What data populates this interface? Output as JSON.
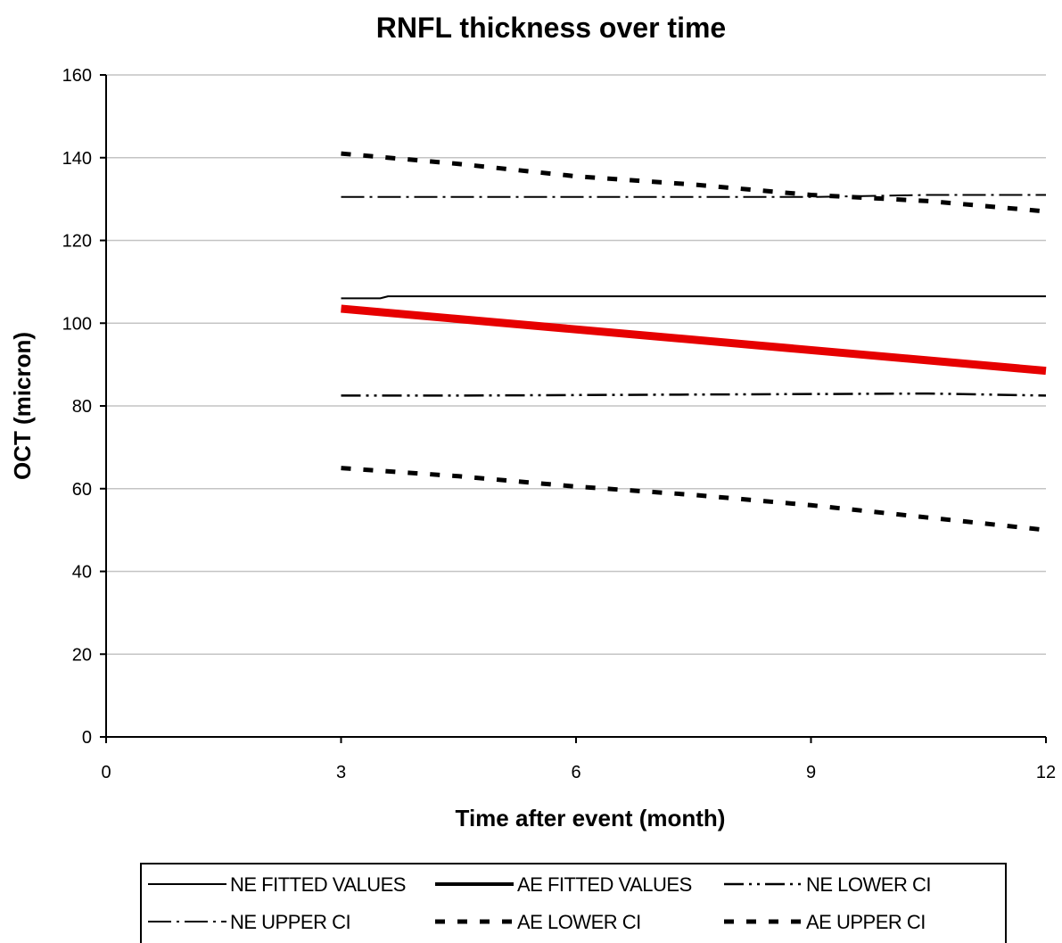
{
  "chart_data": {
    "type": "line",
    "title": "RNFL thickness over time",
    "xlabel": "Time after event (month)",
    "ylabel": "OCT (micron)",
    "xlim": [
      0,
      12
    ],
    "ylim": [
      0,
      160
    ],
    "x_ticks": [
      0,
      3,
      6,
      9,
      12
    ],
    "y_ticks": [
      0,
      20,
      40,
      60,
      80,
      100,
      120,
      140,
      160
    ],
    "grid": "horizontal",
    "legend_position": "bottom",
    "series": [
      {
        "name": "NE FITTED VALUES",
        "style": "thin-solid",
        "color": "#000000",
        "x": [
          3,
          3.5,
          3.6,
          12
        ],
        "y": [
          106,
          106,
          106.5,
          106.5
        ]
      },
      {
        "name": "AE FITTED VALUES",
        "style": "solid",
        "color": "#e60000",
        "x": [
          3,
          12
        ],
        "y": [
          103.5,
          88.5
        ]
      },
      {
        "name": "NE LOWER CI",
        "style": "dash-dot-dot",
        "color": "#000000",
        "x": [
          3,
          4.5,
          10.5,
          12
        ],
        "y": [
          82.5,
          82.5,
          83,
          82.5
        ]
      },
      {
        "name": "NE UPPER CI",
        "style": "dash-dot",
        "color": "#000000",
        "x": [
          3,
          6,
          9,
          10.5,
          12
        ],
        "y": [
          130.5,
          130.5,
          130.5,
          131,
          131
        ]
      },
      {
        "name": "AE LOWER CI",
        "style": "heavy-dash",
        "color": "#000000",
        "x": [
          3,
          4.5,
          6,
          7.5,
          9,
          10.5,
          12
        ],
        "y": [
          65,
          63,
          60.5,
          58.5,
          56,
          53,
          50
        ]
      },
      {
        "name": "AE UPPER CI",
        "style": "heavy-dash",
        "color": "#000000",
        "x": [
          3,
          4.5,
          6,
          7.5,
          9,
          10.5,
          12
        ],
        "y": [
          141,
          138.5,
          135.5,
          133.5,
          131,
          129.5,
          127
        ]
      }
    ]
  }
}
